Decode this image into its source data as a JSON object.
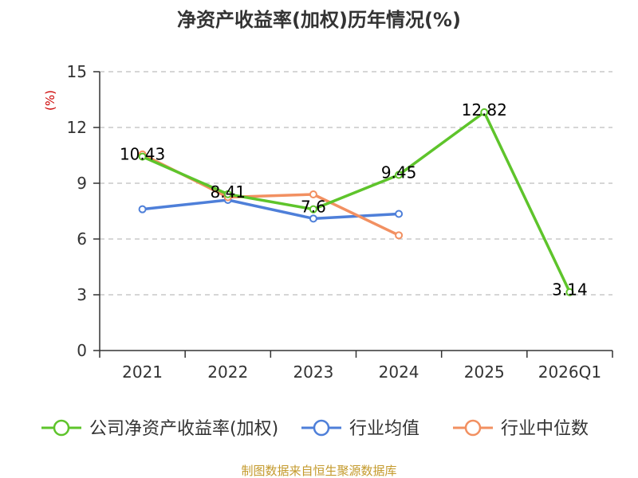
{
  "chart_data": {
    "type": "line",
    "title": "净资产收益率(加权)历年情况(%)",
    "ylabel": "(%)",
    "categories": [
      "2021",
      "2022",
      "2023",
      "2024",
      "2025",
      "2026Q1"
    ],
    "ylim": [
      0,
      15
    ],
    "yticks": [
      0,
      3,
      6,
      9,
      12,
      15
    ],
    "grid": true,
    "legend_position": "bottom",
    "series": [
      {
        "name": "公司净资产收益率(加权)",
        "color": "#5ec42b",
        "values": [
          10.43,
          8.41,
          7.6,
          9.45,
          12.82,
          3.14
        ],
        "labels": [
          "10.43",
          "8.41",
          "7.6",
          "9.45",
          "12.82",
          "3.14"
        ]
      },
      {
        "name": "行业均值",
        "color": "#4e7fd9",
        "values": [
          7.6,
          8.1,
          7.1,
          7.35,
          null,
          null
        ]
      },
      {
        "name": "行业中位数",
        "color": "#f29061",
        "values": [
          10.55,
          8.25,
          8.4,
          6.2,
          null,
          null
        ]
      }
    ],
    "source": "制图数据来自恒生聚源数据库",
    "source_color": "#c49a2c",
    "unit_color": "#cc0000"
  }
}
